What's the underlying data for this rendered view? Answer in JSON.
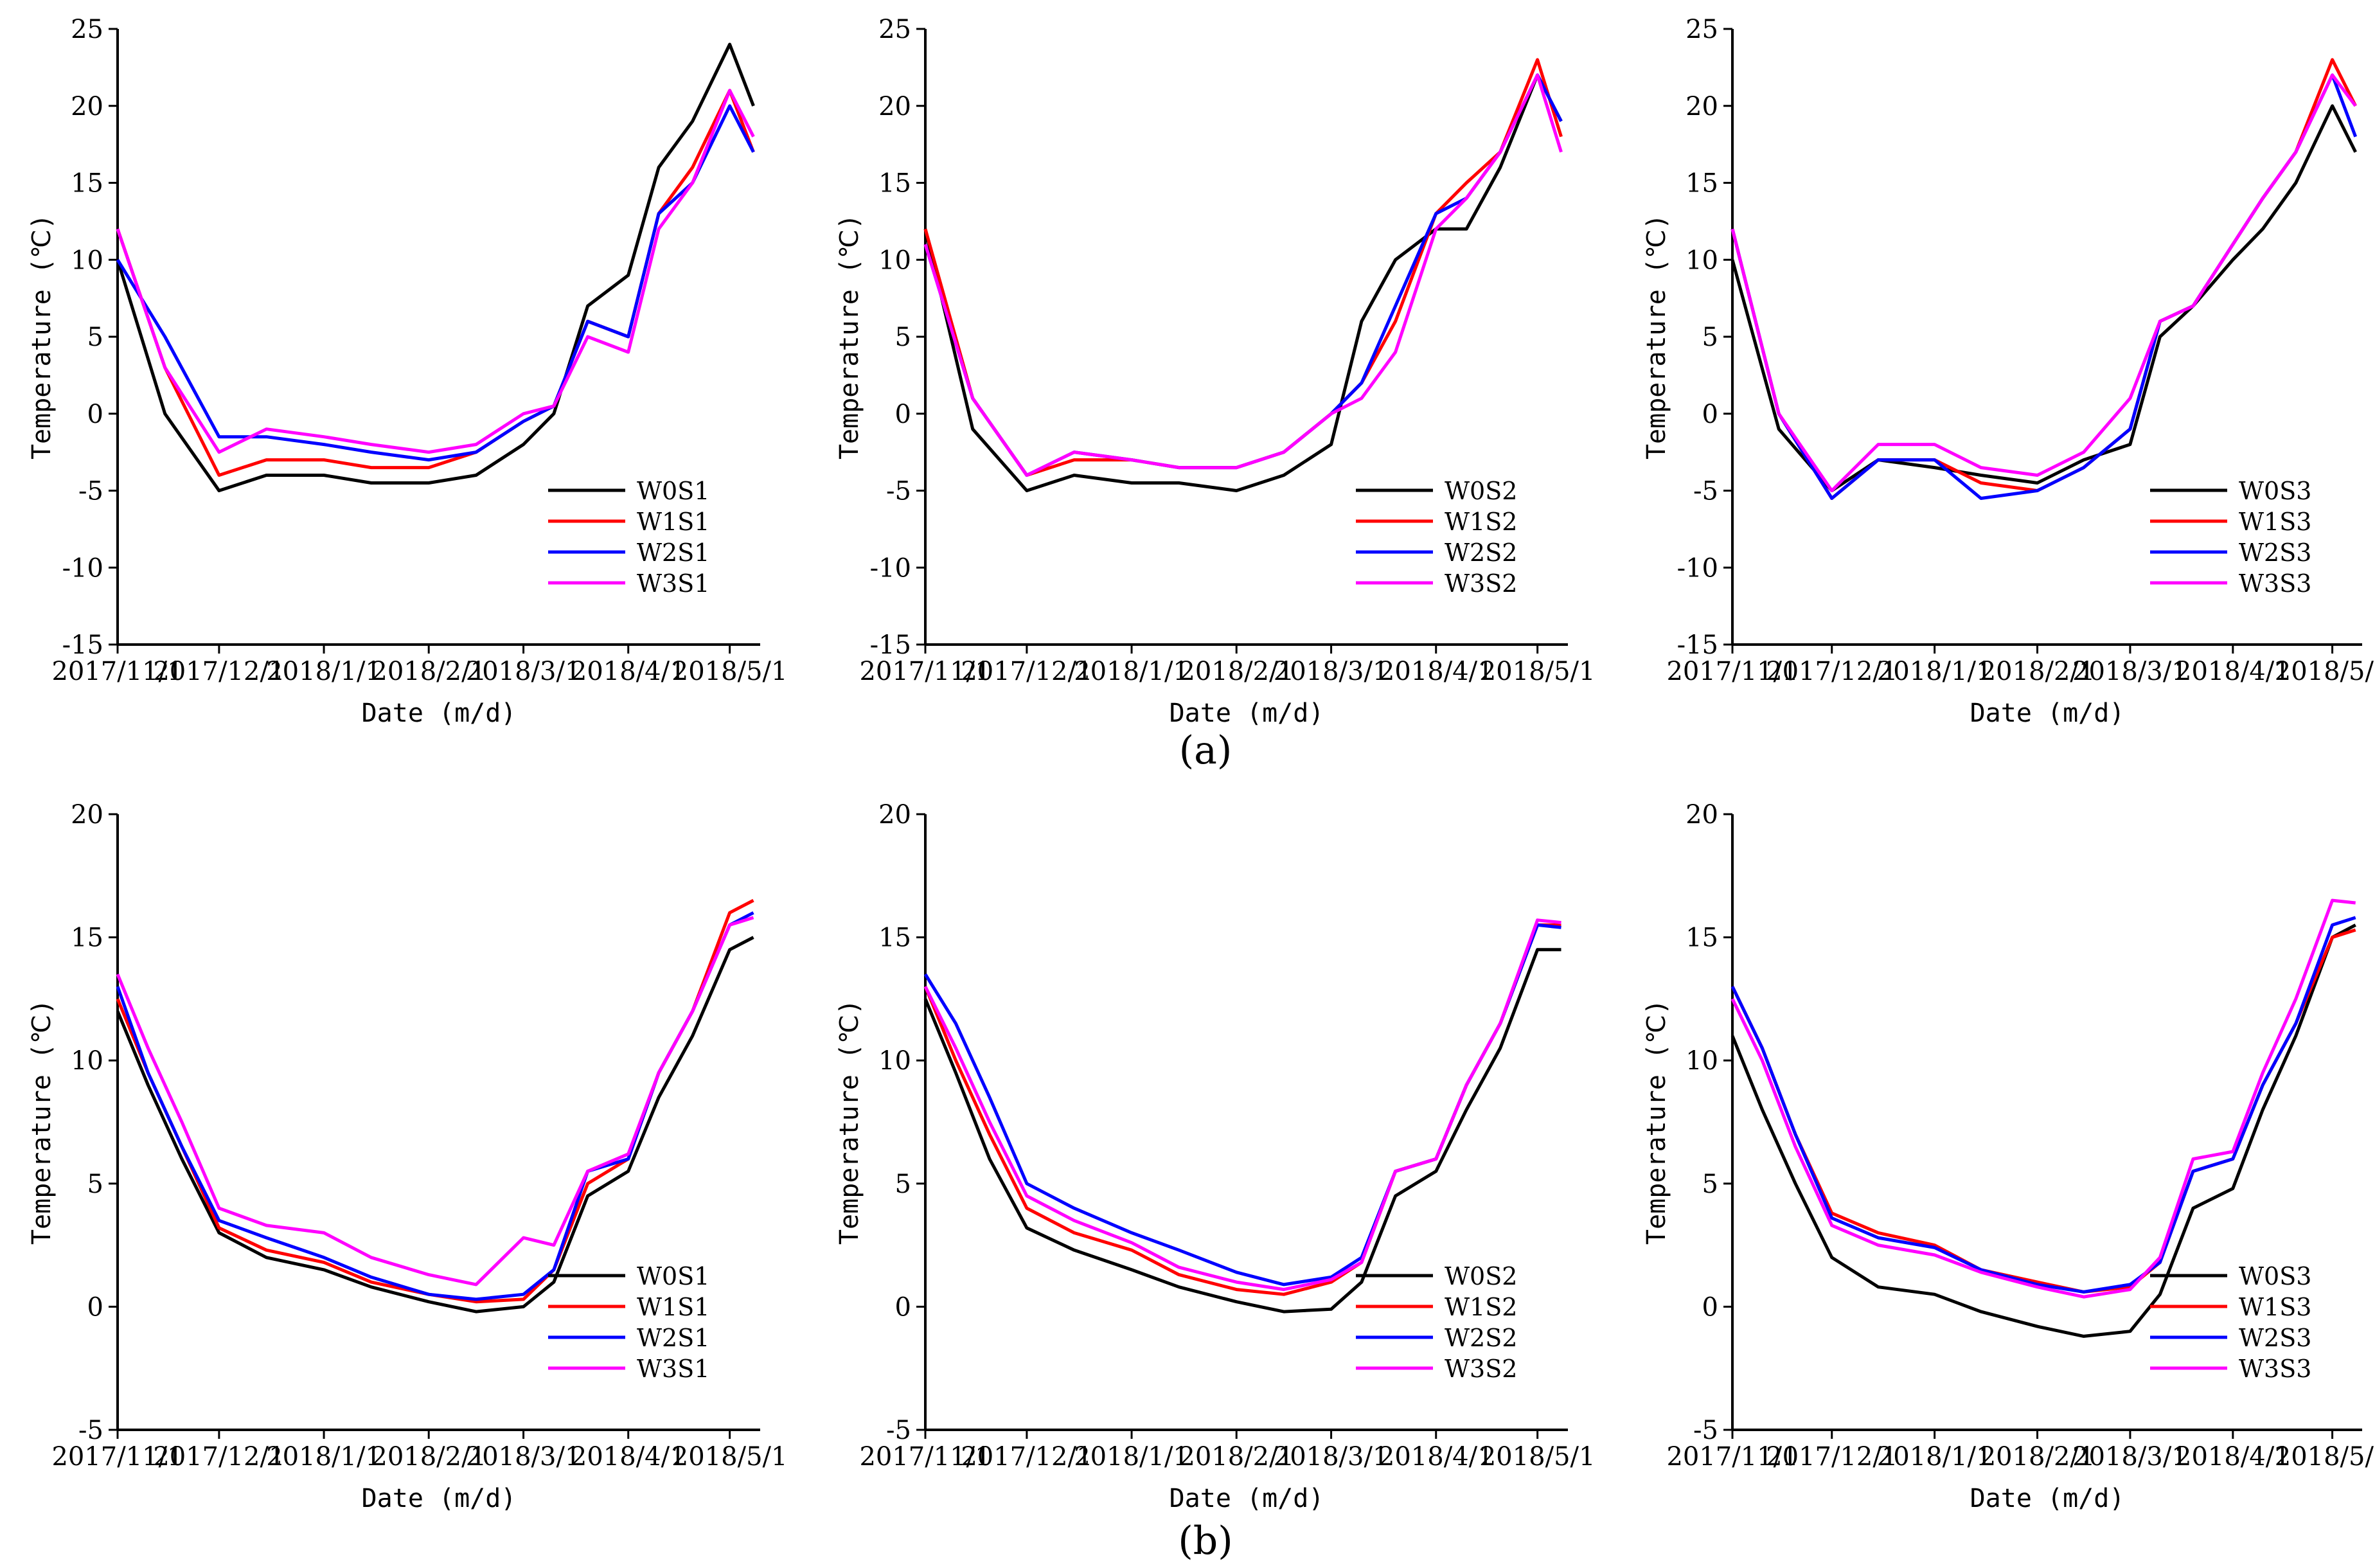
{
  "figure": {
    "panel_labels": [
      "(a)",
      "(b)"
    ],
    "colors": {
      "W0": "#000000",
      "W1": "#ff0000",
      "W2": "#0000ff",
      "W3": "#ff00ff"
    }
  },
  "chart_data": [
    {
      "type": "line",
      "panel": "a",
      "xlabel": "Date (m/d)",
      "ylabel": "Temperature (℃)",
      "xlim": [
        "2017-11-01",
        "2018-05-10"
      ],
      "ylim": [
        -15,
        25
      ],
      "yticks": [
        -15,
        -10,
        -5,
        0,
        5,
        10,
        15,
        20,
        25
      ],
      "xtick_values": [
        "2017-11-01",
        "2017-12-01",
        "2018-01-01",
        "2018-02-01",
        "2018-03-01",
        "2018-04-01",
        "2018-05-01"
      ],
      "xtick_labels": [
        "2017/11/1",
        "2017/12/1",
        "2018/1/1",
        "2018/2/1",
        "2018/3/1",
        "2018/4/1",
        "2018/5/1"
      ],
      "legend_position": "bottom-right",
      "grid": false,
      "x": [
        "2017-11-01",
        "2017-11-15",
        "2017-12-01",
        "2017-12-15",
        "2018-01-01",
        "2018-01-15",
        "2018-02-01",
        "2018-02-15",
        "2018-03-01",
        "2018-03-10",
        "2018-03-20",
        "2018-04-01",
        "2018-04-10",
        "2018-04-20",
        "2018-05-01",
        "2018-05-08"
      ],
      "series": [
        {
          "name": "W0S1",
          "values": [
            10,
            0,
            -5,
            -4,
            -4,
            -4.5,
            -4.5,
            -4,
            -2,
            0,
            7,
            9,
            16,
            19,
            24,
            20
          ]
        },
        {
          "name": "W1S1",
          "values": [
            12,
            3,
            -4,
            -3,
            -3,
            -3.5,
            -3.5,
            -2.5,
            -0.5,
            0.5,
            6,
            5,
            13,
            16,
            21,
            17
          ]
        },
        {
          "name": "W2S1",
          "values": [
            10,
            5,
            -1.5,
            -1.5,
            -2,
            -2.5,
            -3,
            -2.5,
            -0.5,
            0.5,
            6,
            5,
            13,
            15,
            20,
            17
          ]
        },
        {
          "name": "W3S1",
          "values": [
            12,
            3,
            -2.5,
            -1,
            -1.5,
            -2,
            -2.5,
            -2,
            0,
            0.5,
            5,
            4,
            12,
            15,
            21,
            18
          ]
        }
      ]
    },
    {
      "type": "line",
      "panel": "a",
      "xlabel": "Date (m/d)",
      "ylabel": "Temperature (℃)",
      "xlim": [
        "2017-11-01",
        "2018-05-10"
      ],
      "ylim": [
        -15,
        25
      ],
      "yticks": [
        -15,
        -10,
        -5,
        0,
        5,
        10,
        15,
        20,
        25
      ],
      "xtick_values": [
        "2017-11-01",
        "2017-12-01",
        "2018-01-01",
        "2018-02-01",
        "2018-03-01",
        "2018-04-01",
        "2018-05-01"
      ],
      "xtick_labels": [
        "2017/11/1",
        "2017/12/1",
        "2018/1/1",
        "2018/2/1",
        "2018/3/1",
        "2018/4/1",
        "2018/5/1"
      ],
      "legend_position": "bottom-right",
      "grid": false,
      "x": [
        "2017-11-01",
        "2017-11-15",
        "2017-12-01",
        "2017-12-15",
        "2018-01-01",
        "2018-01-15",
        "2018-02-01",
        "2018-02-15",
        "2018-03-01",
        "2018-03-10",
        "2018-03-20",
        "2018-04-01",
        "2018-04-10",
        "2018-04-20",
        "2018-05-01",
        "2018-05-08"
      ],
      "series": [
        {
          "name": "W0S2",
          "values": [
            12,
            -1,
            -5,
            -4,
            -4.5,
            -4.5,
            -5,
            -4,
            -2,
            6,
            10,
            12,
            12,
            16,
            22,
            19
          ]
        },
        {
          "name": "W1S2",
          "values": [
            12,
            1,
            -4,
            -3,
            -3,
            -3.5,
            -3.5,
            -2.5,
            0,
            2,
            6,
            13,
            15,
            17,
            23,
            18
          ]
        },
        {
          "name": "W2S2",
          "values": [
            11,
            1,
            -4,
            -2.5,
            -3,
            -3.5,
            -3.5,
            -2.5,
            0,
            2,
            7,
            13,
            14,
            17,
            22,
            19
          ]
        },
        {
          "name": "W3S2",
          "values": [
            11,
            1,
            -4,
            -2.5,
            -3,
            -3.5,
            -3.5,
            -2.5,
            0,
            1,
            4,
            12,
            14,
            17,
            22,
            17
          ]
        }
      ]
    },
    {
      "type": "line",
      "panel": "a",
      "xlabel": "Date (m/d)",
      "ylabel": "Temperature (℃)",
      "xlim": [
        "2017-11-01",
        "2018-05-10"
      ],
      "ylim": [
        -15,
        25
      ],
      "yticks": [
        -15,
        -10,
        -5,
        0,
        5,
        10,
        15,
        20,
        25
      ],
      "xtick_values": [
        "2017-11-01",
        "2017-12-01",
        "2018-01-01",
        "2018-02-01",
        "2018-03-01",
        "2018-04-01",
        "2018-05-01"
      ],
      "xtick_labels": [
        "2017/11/1",
        "2017/12/1",
        "2018/1/1",
        "2018/2/1",
        "2018/3/1",
        "2018/4/1",
        "2018/5/1"
      ],
      "legend_position": "bottom-right",
      "grid": false,
      "x": [
        "2017-11-01",
        "2017-11-15",
        "2017-12-01",
        "2017-12-15",
        "2018-01-01",
        "2018-01-15",
        "2018-02-01",
        "2018-02-15",
        "2018-03-01",
        "2018-03-10",
        "2018-03-20",
        "2018-04-01",
        "2018-04-10",
        "2018-04-20",
        "2018-05-01",
        "2018-05-08"
      ],
      "series": [
        {
          "name": "W0S3",
          "values": [
            10,
            -1,
            -5,
            -3,
            -3.5,
            -4,
            -4.5,
            -3,
            -2,
            5,
            7,
            10,
            12,
            15,
            20,
            17
          ]
        },
        {
          "name": "W1S3",
          "values": [
            12,
            0,
            -5.5,
            -3,
            -3,
            -4.5,
            -5,
            -3.5,
            -1,
            6,
            7,
            11,
            14,
            17,
            23,
            20
          ]
        },
        {
          "name": "W2S3",
          "values": [
            12,
            0,
            -5.5,
            -3,
            -3,
            -5.5,
            -5,
            -3.5,
            -1,
            6,
            7,
            11,
            14,
            17,
            22,
            18
          ]
        },
        {
          "name": "W3S3",
          "values": [
            12,
            0,
            -5,
            -2,
            -2,
            -3.5,
            -4,
            -2.5,
            1,
            6,
            7,
            11,
            14,
            17,
            22,
            20
          ]
        }
      ]
    },
    {
      "type": "line",
      "panel": "b",
      "xlabel": "Date (m/d)",
      "ylabel": "Temperature (℃)",
      "xlim": [
        "2017-11-01",
        "2018-05-10"
      ],
      "ylim": [
        -5,
        20
      ],
      "yticks": [
        -5,
        0,
        5,
        10,
        15,
        20
      ],
      "xtick_values": [
        "2017-11-01",
        "2017-12-01",
        "2018-01-01",
        "2018-02-01",
        "2018-03-01",
        "2018-04-01",
        "2018-05-01"
      ],
      "xtick_labels": [
        "2017/11/1",
        "2017/12/1",
        "2018/1/1",
        "2018/2/1",
        "2018/3/1",
        "2018/4/1",
        "2018/5/1"
      ],
      "legend_position": "bottom-right",
      "grid": false,
      "x": [
        "2017-11-01",
        "2017-11-10",
        "2017-11-20",
        "2017-12-01",
        "2017-12-15",
        "2018-01-01",
        "2018-01-15",
        "2018-02-01",
        "2018-02-15",
        "2018-03-01",
        "2018-03-10",
        "2018-03-20",
        "2018-04-01",
        "2018-04-10",
        "2018-04-20",
        "2018-05-01",
        "2018-05-08"
      ],
      "series": [
        {
          "name": "W0S1",
          "values": [
            12,
            9,
            6,
            3,
            2,
            1.5,
            0.8,
            0.2,
            -0.2,
            0,
            1,
            4.5,
            5.5,
            8.5,
            11,
            14.5,
            15
          ]
        },
        {
          "name": "W1S1",
          "values": [
            12.5,
            9.5,
            6.5,
            3.2,
            2.3,
            1.8,
            1,
            0.5,
            0.2,
            0.3,
            1.5,
            5,
            6,
            9.5,
            12,
            16,
            16.5
          ]
        },
        {
          "name": "W2S1",
          "values": [
            13,
            9.5,
            6.5,
            3.5,
            2.8,
            2,
            1.2,
            0.5,
            0.3,
            0.5,
            1.5,
            5.5,
            6,
            9.5,
            12,
            15.5,
            16
          ]
        },
        {
          "name": "W3S1",
          "values": [
            13.5,
            10.5,
            7.5,
            4,
            3.3,
            3,
            2,
            1.3,
            0.9,
            2.8,
            2.5,
            5.5,
            6.2,
            9.5,
            12,
            15.5,
            15.8
          ]
        }
      ]
    },
    {
      "type": "line",
      "panel": "b",
      "xlabel": "Date (m/d)",
      "ylabel": "Temperature (℃)",
      "xlim": [
        "2017-11-01",
        "2018-05-10"
      ],
      "ylim": [
        -5,
        20
      ],
      "yticks": [
        -5,
        0,
        5,
        10,
        15,
        20
      ],
      "xtick_values": [
        "2017-11-01",
        "2017-12-01",
        "2018-01-01",
        "2018-02-01",
        "2018-03-01",
        "2018-04-01",
        "2018-05-01"
      ],
      "xtick_labels": [
        "2017/11/1",
        "2017/12/1",
        "2018/1/1",
        "2018/2/1",
        "2018/3/1",
        "2018/4/1",
        "2018/5/1"
      ],
      "legend_position": "bottom-right",
      "grid": false,
      "x": [
        "2017-11-01",
        "2017-11-10",
        "2017-11-20",
        "2017-12-01",
        "2017-12-15",
        "2018-01-01",
        "2018-01-15",
        "2018-02-01",
        "2018-02-15",
        "2018-03-01",
        "2018-03-10",
        "2018-03-20",
        "2018-04-01",
        "2018-04-10",
        "2018-04-20",
        "2018-05-01",
        "2018-05-08"
      ],
      "series": [
        {
          "name": "W0S2",
          "values": [
            12.5,
            9.5,
            6,
            3.2,
            2.3,
            1.5,
            0.8,
            0.2,
            -0.2,
            -0.1,
            1,
            4.5,
            5.5,
            8,
            10.5,
            14.5,
            14.5
          ]
        },
        {
          "name": "W1S2",
          "values": [
            13,
            10,
            7,
            4,
            3,
            2.3,
            1.3,
            0.7,
            0.5,
            1,
            1.8,
            5.5,
            6,
            9,
            11.5,
            15.5,
            15.5
          ]
        },
        {
          "name": "W2S2",
          "values": [
            13.5,
            11.5,
            8.5,
            5,
            4,
            3,
            2.3,
            1.4,
            0.9,
            1.2,
            2,
            5.5,
            6,
            9,
            11.5,
            15.5,
            15.4
          ]
        },
        {
          "name": "W3S2",
          "values": [
            13,
            10.5,
            7.5,
            4.5,
            3.5,
            2.6,
            1.6,
            1,
            0.7,
            1.1,
            1.8,
            5.5,
            6,
            9,
            11.5,
            15.7,
            15.6
          ]
        }
      ]
    },
    {
      "type": "line",
      "panel": "b",
      "xlabel": "Date (m/d)",
      "ylabel": "Temperature (℃)",
      "xlim": [
        "2017-11-01",
        "2018-05-10"
      ],
      "ylim": [
        -5,
        20
      ],
      "yticks": [
        -5,
        0,
        5,
        10,
        15,
        20
      ],
      "xtick_values": [
        "2017-11-01",
        "2017-12-01",
        "2018-01-01",
        "2018-02-01",
        "2018-03-01",
        "2018-04-01",
        "2018-05-01"
      ],
      "xtick_labels": [
        "2017/11/1",
        "2017/12/1",
        "2018/1/1",
        "2018/2/1",
        "2018/3/1",
        "2018/4/1",
        "2018/5/1"
      ],
      "legend_position": "bottom-right",
      "grid": false,
      "x": [
        "2017-11-01",
        "2017-11-10",
        "2017-11-20",
        "2017-12-01",
        "2017-12-15",
        "2018-01-01",
        "2018-01-15",
        "2018-02-01",
        "2018-02-15",
        "2018-03-01",
        "2018-03-10",
        "2018-03-20",
        "2018-04-01",
        "2018-04-10",
        "2018-04-20",
        "2018-05-01",
        "2018-05-08"
      ],
      "series": [
        {
          "name": "W0S3",
          "values": [
            11,
            8,
            5,
            2,
            0.8,
            0.5,
            -0.2,
            -0.8,
            -1.2,
            -1,
            0.5,
            4,
            4.8,
            8,
            11,
            15,
            15.5
          ]
        },
        {
          "name": "W1S3",
          "values": [
            13,
            10.5,
            7,
            3.8,
            3,
            2.5,
            1.5,
            1,
            0.6,
            0.8,
            1.8,
            5.5,
            6,
            9,
            11.5,
            15,
            15.3
          ]
        },
        {
          "name": "W2S3",
          "values": [
            13,
            10.5,
            7,
            3.6,
            2.8,
            2.4,
            1.5,
            0.9,
            0.6,
            0.9,
            1.8,
            5.5,
            6,
            9,
            11.5,
            15.5,
            15.8
          ]
        },
        {
          "name": "W3S3",
          "values": [
            12.5,
            10,
            6.5,
            3.3,
            2.5,
            2.1,
            1.4,
            0.8,
            0.4,
            0.7,
            2,
            6,
            6.3,
            9.5,
            12.5,
            16.5,
            16.4
          ]
        }
      ]
    }
  ]
}
